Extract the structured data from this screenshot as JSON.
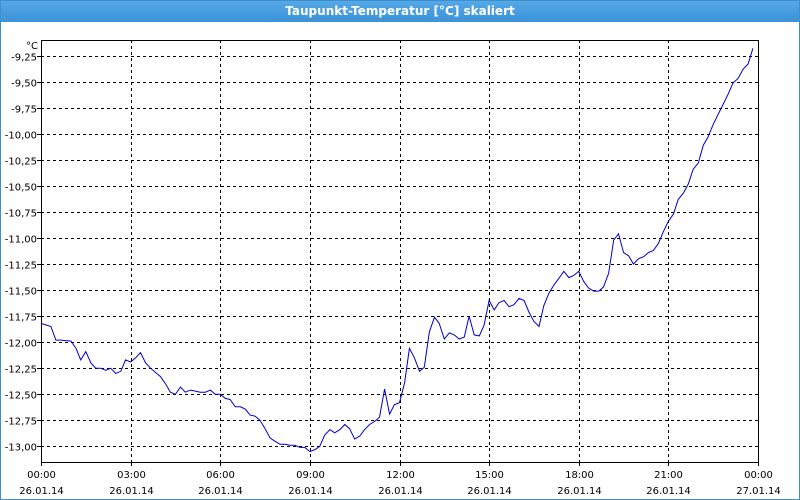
{
  "window": {
    "title": "Taupunkt-Temperatur [°C] skaliert"
  },
  "chart_data": {
    "type": "line",
    "title": "Taupunkt-Temperatur [°C] skaliert",
    "unit_label": "°C",
    "xlabel": "",
    "ylabel": "",
    "ylim": [
      -13.15,
      -9.1
    ],
    "y_ticks": [
      -13.0,
      -12.75,
      -12.5,
      -12.25,
      -12.0,
      -11.75,
      -11.5,
      -11.25,
      -11.0,
      -10.75,
      -10.5,
      -10.25,
      -10.0,
      -9.75,
      -9.5,
      -9.25
    ],
    "y_tick_labels": [
      "-13,00",
      "-12,75",
      "-12,50",
      "-12,25",
      "-12,00",
      "-11,75",
      "-11,50",
      "-11,25",
      "-11,00",
      "-10,75",
      "-10,50",
      "-10,25",
      "-10,00",
      "-9,75",
      "-9,50",
      "-9,25"
    ],
    "xlim": [
      0,
      24
    ],
    "x_ticks": [
      0,
      3,
      6,
      9,
      12,
      15,
      18,
      21,
      24
    ],
    "x_tick_labels": [
      {
        "time": "00:00",
        "date": "26.01.14"
      },
      {
        "time": "03:00",
        "date": "26.01.14"
      },
      {
        "time": "06:00",
        "date": "26.01.14"
      },
      {
        "time": "09:00",
        "date": "26.01.14"
      },
      {
        "time": "12:00",
        "date": "26.01.14"
      },
      {
        "time": "15:00",
        "date": "26.01.14"
      },
      {
        "time": "18:00",
        "date": "26.01.14"
      },
      {
        "time": "21:00",
        "date": "26.01.14"
      },
      {
        "time": "00:00",
        "date": "27.01.14"
      }
    ],
    "grid": true,
    "line_color": "#0000cc",
    "series": [
      {
        "x": [
          0.0,
          0.33,
          0.5,
          0.67,
          1.0,
          1.17,
          1.33,
          1.5,
          1.67,
          1.83,
          2.0,
          2.17,
          2.33,
          2.5,
          2.67,
          2.83,
          3.0,
          3.17,
          3.33,
          3.5,
          3.67,
          3.83,
          4.0,
          4.17,
          4.33,
          4.5,
          4.67,
          4.83,
          5.0,
          5.17,
          5.33,
          5.5,
          5.67,
          5.83,
          6.0,
          6.17,
          6.33,
          6.5,
          6.67,
          6.83,
          7.0,
          7.17,
          7.33,
          7.5,
          7.67,
          7.83,
          8.0,
          8.17,
          8.33,
          8.5,
          8.67,
          8.83,
          9.0,
          9.17,
          9.33,
          9.5,
          9.67,
          9.83,
          10.0,
          10.17,
          10.33,
          10.5,
          10.67,
          10.83,
          11.0,
          11.17,
          11.33,
          11.5,
          11.67,
          11.83,
          12.0,
          12.17,
          12.33,
          12.5,
          12.67,
          12.83,
          13.0,
          13.17,
          13.33,
          13.5,
          13.67,
          13.83,
          14.0,
          14.17,
          14.33,
          14.5,
          14.67,
          14.83,
          15.0,
          15.17,
          15.33,
          15.5,
          15.67,
          15.83,
          16.0,
          16.17,
          16.33,
          16.5,
          16.67,
          16.83,
          17.0,
          17.17,
          17.33,
          17.5,
          17.67,
          17.83,
          18.0,
          18.17,
          18.33,
          18.5,
          18.67,
          18.83,
          19.0,
          19.17,
          19.33,
          19.5,
          19.67,
          19.83,
          20.0,
          20.17,
          20.33,
          20.5,
          20.67,
          20.83,
          21.0,
          21.17,
          21.33,
          21.5,
          21.67,
          21.83,
          22.0,
          22.17,
          22.33,
          22.5,
          22.67,
          22.83,
          23.0,
          23.17,
          23.33,
          23.5,
          23.67,
          23.83
        ],
        "values": [
          -11.82,
          -11.85,
          -11.98,
          -11.98,
          -11.99,
          -12.06,
          -12.17,
          -12.09,
          -12.2,
          -12.25,
          -12.25,
          -12.27,
          -12.25,
          -12.3,
          -12.28,
          -12.17,
          -12.19,
          -12.15,
          -12.1,
          -12.2,
          -12.25,
          -12.29,
          -12.33,
          -12.4,
          -12.48,
          -12.5,
          -12.43,
          -12.48,
          -12.46,
          -12.47,
          -12.48,
          -12.48,
          -12.46,
          -12.5,
          -12.5,
          -12.54,
          -12.55,
          -12.62,
          -12.62,
          -12.64,
          -12.7,
          -12.71,
          -12.75,
          -12.83,
          -12.92,
          -12.95,
          -12.98,
          -12.98,
          -12.99,
          -12.99,
          -13.01,
          -13.01,
          -13.05,
          -13.03,
          -13.0,
          -12.89,
          -12.84,
          -12.87,
          -12.84,
          -12.79,
          -12.83,
          -12.93,
          -12.9,
          -12.84,
          -12.79,
          -12.76,
          -12.72,
          -12.45,
          -12.69,
          -12.6,
          -12.58,
          -12.39,
          -12.06,
          -12.15,
          -12.28,
          -12.24,
          -11.9,
          -11.76,
          -11.82,
          -11.97,
          -11.91,
          -11.93,
          -11.97,
          -11.95,
          -11.75,
          -11.93,
          -11.94,
          -11.84,
          -11.6,
          -11.69,
          -11.62,
          -11.6,
          -11.66,
          -11.64,
          -11.58,
          -11.6,
          -11.71,
          -11.8,
          -11.85,
          -11.65,
          -11.53,
          -11.45,
          -11.39,
          -11.32,
          -11.38,
          -11.36,
          -11.32,
          -11.42,
          -11.48,
          -11.51,
          -11.51,
          -11.47,
          -11.34,
          -11.02,
          -10.96,
          -11.14,
          -11.17,
          -11.25,
          -11.2,
          -11.18,
          -11.14,
          -11.12,
          -11.05,
          -10.94,
          -10.84,
          -10.77,
          -10.63,
          -10.57,
          -10.48,
          -10.34,
          -10.28,
          -10.11,
          -10.03,
          -9.91,
          -9.81,
          -9.72,
          -9.62,
          -9.51,
          -9.47,
          -9.38,
          -9.33,
          -9.18
        ]
      }
    ]
  }
}
